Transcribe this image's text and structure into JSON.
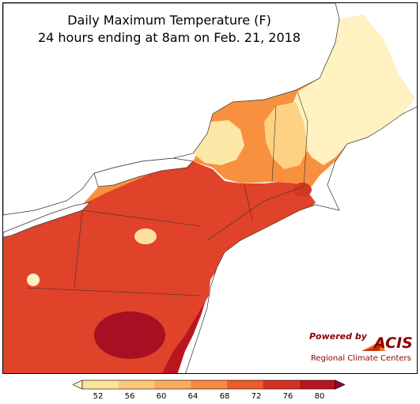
{
  "map": {
    "title_line1": "Daily Maximum Temperature (F)",
    "title_line2": "24 hours ending at 8am on Feb. 21, 2018",
    "region": "Northeast United States",
    "colors": {
      "lake": "#ffffff",
      "ocean": "#ffffff",
      "border": "#333333"
    }
  },
  "legend": {
    "ticks": [
      "52",
      "56",
      "60",
      "64",
      "68",
      "72",
      "76",
      "80"
    ],
    "colors": [
      "#fff5c8",
      "#fee39a",
      "#fdc979",
      "#fcab5c",
      "#f98840",
      "#ec5b2c",
      "#d63024",
      "#b7141e",
      "#8c0a26"
    ],
    "extend": "both"
  },
  "logo": {
    "powered_by": "Powered by",
    "name": "ACIS",
    "subtitle": "Regional Climate Centers"
  }
}
